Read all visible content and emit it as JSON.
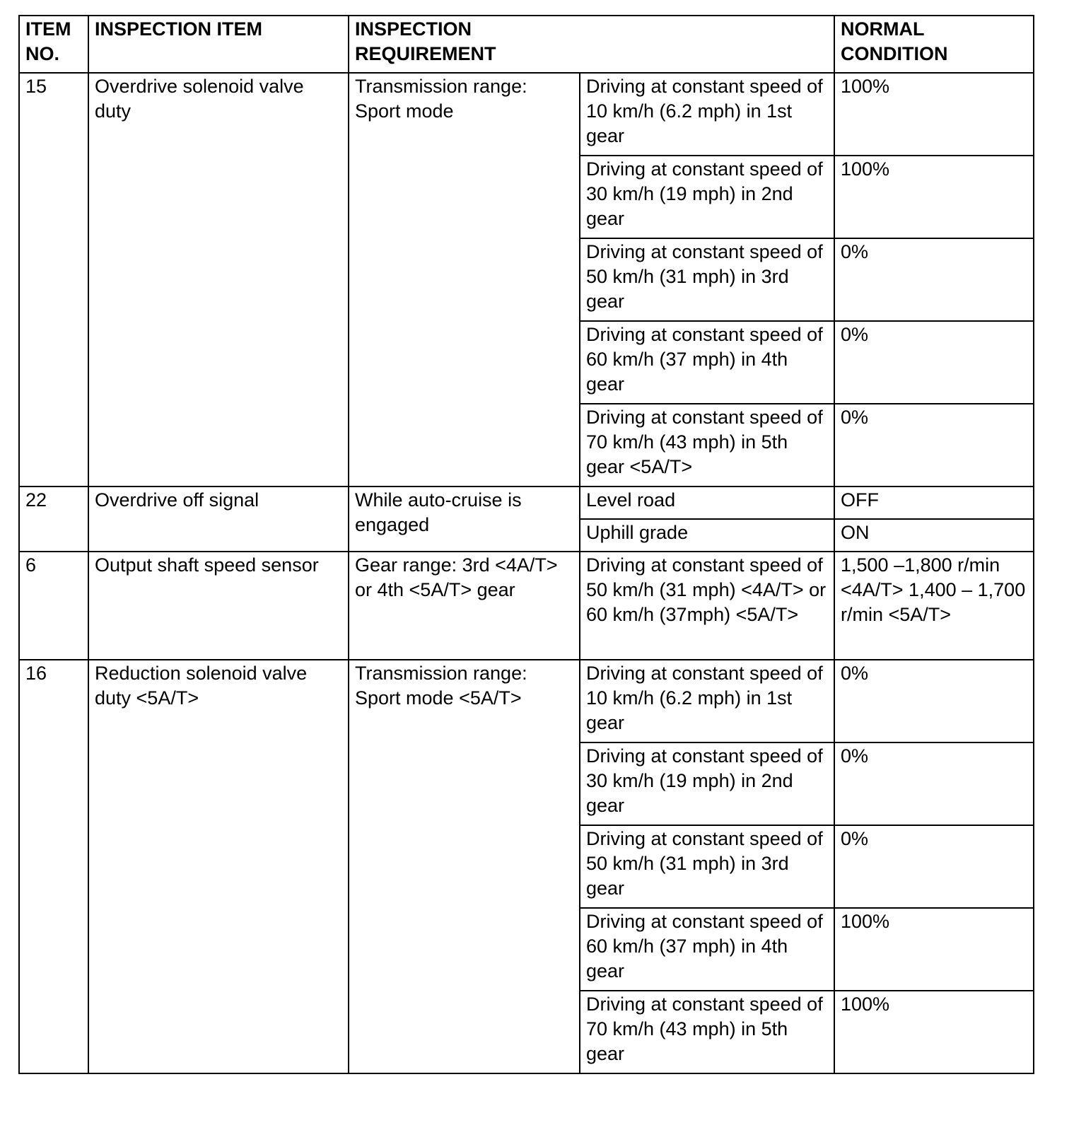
{
  "headers": {
    "item_no": "ITEM NO.",
    "inspection_item": "INSPECTION ITEM",
    "inspection_requirement": "INSPECTION REQUIREMENT",
    "normal_condition": "NORMAL CONDITION"
  },
  "groups": [
    {
      "item_no": "15",
      "item": "Overdrive solenoid valve duty",
      "requirement": "Transmission range: Sport mode",
      "row_class": "s",
      "rows": [
        {
          "condition": "Driving at constant speed of 10 km/h (6.2 mph) in 1st gear",
          "normal": "100%"
        },
        {
          "condition": "Driving at constant speed of 30 km/h (19 mph) in 2nd gear",
          "normal": "100%"
        },
        {
          "condition": "Driving at constant speed of 50 km/h (31 mph) in 3rd gear",
          "normal": "0%"
        },
        {
          "condition": "Driving at constant speed of 60 km/h (37 mph) in 4th gear",
          "normal": "0%"
        },
        {
          "condition": "Driving at constant speed of 70 km/h (43 mph) in 5th gear <5A/T>",
          "normal": "0%"
        }
      ]
    },
    {
      "item_no": "22",
      "item": "Overdrive off signal",
      "requirement": "While auto-cruise is engaged",
      "row_class": "t",
      "rows": [
        {
          "condition": "Level road",
          "normal": "OFF"
        },
        {
          "condition": "Uphill grade",
          "normal": "ON"
        }
      ]
    },
    {
      "item_no": "6",
      "item": "Output shaft speed sensor",
      "requirement": "Gear range: 3rd <4A/T> or 4th <5A/T> gear",
      "row_class": "o",
      "rows": [
        {
          "condition": "Driving at constant speed of 50 km/h (31 mph) <4A/T> or 60 km/h (37mph) <5A/T>",
          "normal": "1,500 –1,800 r/min <4A/T> 1,400 – 1,700 r/min <5A/T>"
        }
      ]
    },
    {
      "item_no": "16",
      "item": "Reduction solenoid valve duty <5A/T>",
      "requirement": "Transmission range: Sport mode <5A/T>",
      "row_class": "s",
      "rows": [
        {
          "condition": "Driving at constant speed of 10 km/h (6.2 mph) in 1st gear",
          "normal": "0%"
        },
        {
          "condition": "Driving at constant speed of 30 km/h (19 mph) in 2nd gear",
          "normal": "0%"
        },
        {
          "condition": "Driving at constant speed of 50 km/h (31 mph) in 3rd gear",
          "normal": "0%"
        },
        {
          "condition": "Driving at constant speed of 60 km/h (37 mph) in 4th gear",
          "normal": "100%"
        },
        {
          "condition": "Driving at constant speed of 70 km/h (43 mph) in 5th gear",
          "normal": "100%"
        }
      ]
    }
  ]
}
